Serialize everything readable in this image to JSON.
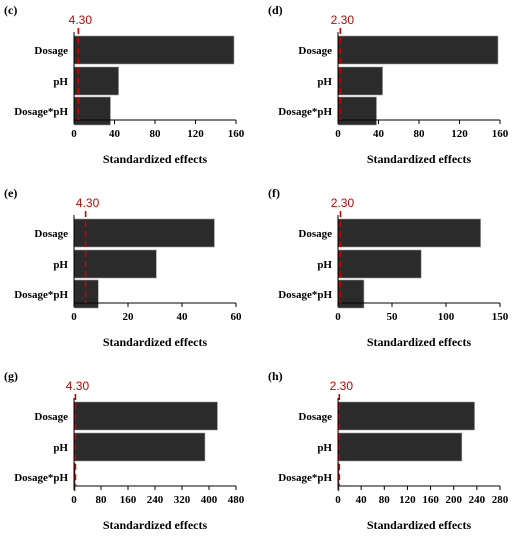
{
  "colors": {
    "bar": "#2b2b2b",
    "reference_line": "#cc0000",
    "axis": "#000000"
  },
  "chart_data": [
    {
      "panel": "(c)",
      "type": "bar",
      "orientation": "horizontal",
      "categories": [
        "Dosage",
        "pH",
        "Dosage*pH"
      ],
      "values": [
        158,
        44,
        36
      ],
      "reference_value": 4.3,
      "reference_label": "4.30",
      "xlim": [
        0,
        160
      ],
      "xticks": [
        "0",
        "40",
        "80",
        "120",
        "160"
      ],
      "xlabel": "Standardized effects",
      "grid": false
    },
    {
      "panel": "(d)",
      "type": "bar",
      "orientation": "horizontal",
      "categories": [
        "Dosage",
        "pH",
        "Dosage*pH"
      ],
      "values": [
        158,
        44,
        38
      ],
      "reference_value": 2.3,
      "reference_label": "2.30",
      "xlim": [
        0,
        160
      ],
      "xticks": [
        "0",
        "40",
        "80",
        "120",
        "160"
      ],
      "xlabel": "Standardized effects",
      "grid": false
    },
    {
      "panel": "(e)",
      "type": "bar",
      "orientation": "horizontal",
      "categories": [
        "Dosage",
        "pH",
        "Dosage*pH"
      ],
      "values": [
        52,
        30.5,
        9
      ],
      "reference_value": 4.3,
      "reference_label": "4.30",
      "xlim": [
        0,
        60
      ],
      "xticks": [
        "0",
        "20",
        "40",
        "60"
      ],
      "xlabel": "Standardized effects",
      "grid": false
    },
    {
      "panel": "(f)",
      "type": "bar",
      "orientation": "horizontal",
      "categories": [
        "Dosage",
        "pH",
        "Dosage*pH"
      ],
      "values": [
        132,
        77,
        24
      ],
      "reference_value": 2.3,
      "reference_label": "2.30",
      "xlim": [
        0,
        150
      ],
      "xticks": [
        "0",
        "50",
        "100",
        "150"
      ],
      "xlabel": "Standardized effects",
      "grid": false
    },
    {
      "panel": "(g)",
      "type": "bar",
      "orientation": "horizontal",
      "categories": [
        "Dosage",
        "pH",
        "Dosage*pH"
      ],
      "values": [
        425,
        388,
        4
      ],
      "reference_value": 4.3,
      "reference_label": "4.30",
      "xlim": [
        0,
        480
      ],
      "xticks": [
        "0",
        "80",
        "160",
        "240",
        "320",
        "400",
        "480"
      ],
      "xlabel": "Standardized effects",
      "grid": false
    },
    {
      "panel": "(h)",
      "type": "bar",
      "orientation": "horizontal",
      "categories": [
        "Dosage",
        "pH",
        "Dosage*pH"
      ],
      "values": [
        236,
        214,
        2
      ],
      "reference_value": 2.3,
      "reference_label": "2.30",
      "xlim": [
        0,
        280
      ],
      "xticks": [
        "0",
        "40",
        "80",
        "120",
        "160",
        "200",
        "240",
        "280"
      ],
      "xlabel": "Standardized effects",
      "grid": false
    }
  ]
}
